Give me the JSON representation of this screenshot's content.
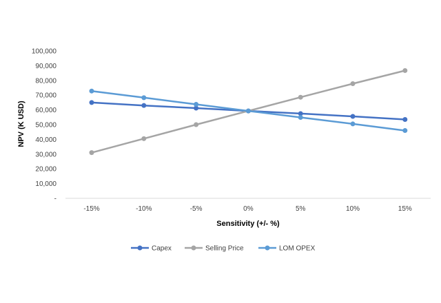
{
  "chart_data": {
    "type": "line",
    "categories": [
      "-15%",
      "-10%",
      "-5%",
      "0%",
      "5%",
      "10%",
      "15%"
    ],
    "series": [
      {
        "name": "Capex",
        "color": "#4472C4",
        "values": [
          65000,
          63000,
          61200,
          59300,
          57500,
          55600,
          53500
        ]
      },
      {
        "name": "Selling Price",
        "color": "#A5A5A5",
        "values": [
          31000,
          40500,
          50000,
          59300,
          68600,
          77800,
          86700
        ]
      },
      {
        "name": "LOM OPEX",
        "color": "#5B9BD5",
        "values": [
          72800,
          68300,
          63800,
          59300,
          54900,
          50500,
          46000
        ]
      }
    ],
    "xlabel": "Sensitivity (+/- %)",
    "ylabel": "NPV (K USD)",
    "ylim": [
      0,
      100000
    ],
    "yticks": [
      "-",
      "10,000",
      "20,000",
      "30,000",
      "40,000",
      "50,000",
      "60,000",
      "70,000",
      "80,000",
      "90,000",
      "100,000"
    ],
    "grid": false,
    "legend": "bottom"
  }
}
